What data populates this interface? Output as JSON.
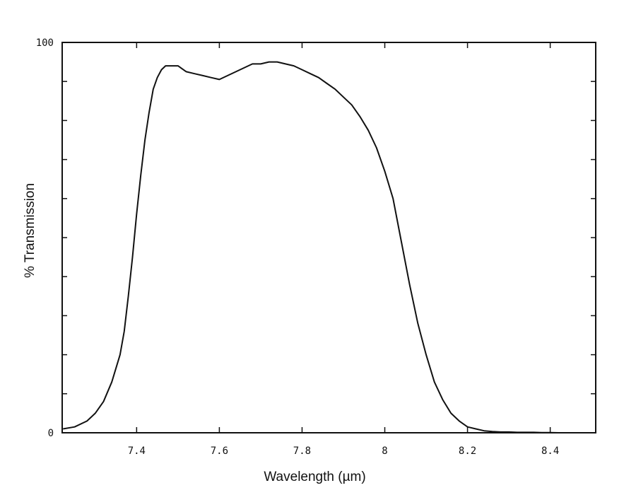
{
  "chart_data": {
    "type": "line",
    "title": "",
    "xlabel": "Wavelength (µm)",
    "ylabel": "% Transmission",
    "xlim": [
      7.22,
      8.51
    ],
    "ylim": [
      0,
      100
    ],
    "x_ticks": [
      7.4,
      7.6,
      7.8,
      8,
      8.2,
      8.4
    ],
    "x_tick_labels": [
      "7.4",
      "7.6",
      "7.8",
      "8",
      "8.2",
      "8.4"
    ],
    "y_ticks": [
      0,
      100
    ],
    "y_tick_labels": [
      "0",
      "100"
    ],
    "y_minor_ticks": [
      10,
      20,
      30,
      40,
      50,
      60,
      70,
      80,
      90
    ],
    "grid": false,
    "colors": {
      "line": "#111111",
      "axes": "#111111"
    },
    "series": [
      {
        "x": [
          7.222,
          7.25,
          7.28,
          7.3,
          7.32,
          7.34,
          7.36,
          7.37,
          7.38,
          7.39,
          7.4,
          7.41,
          7.42,
          7.43,
          7.44,
          7.45,
          7.46,
          7.47,
          7.48,
          7.5,
          7.52,
          7.54,
          7.56,
          7.58,
          7.6,
          7.62,
          7.64,
          7.66,
          7.68,
          7.7,
          7.72,
          7.74,
          7.76,
          7.78,
          7.8,
          7.82,
          7.84,
          7.86,
          7.88,
          7.9,
          7.92,
          7.94,
          7.96,
          7.98,
          8.0,
          8.02,
          8.04,
          8.06,
          8.08,
          8.1,
          8.12,
          8.14,
          8.16,
          8.18,
          8.2,
          8.22,
          8.24,
          8.26,
          8.28,
          8.3,
          8.32,
          8.34,
          8.36,
          8.38,
          8.4,
          8.42,
          8.44
        ],
        "y": [
          1.0,
          1.5,
          3.0,
          5.0,
          8.0,
          13.0,
          20.0,
          26.0,
          35.0,
          45.0,
          56.0,
          66.0,
          75.0,
          82.0,
          88.0,
          91.0,
          93.0,
          94.0,
          94.0,
          94.0,
          92.5,
          92.0,
          91.5,
          91.0,
          90.5,
          91.5,
          92.5,
          93.5,
          94.5,
          94.5,
          95.0,
          95.0,
          94.5,
          94.0,
          93.0,
          92.0,
          91.0,
          89.5,
          88.0,
          86.0,
          84.0,
          81.0,
          77.5,
          73.0,
          67.0,
          60.0,
          49.0,
          38.0,
          28.0,
          20.0,
          13.0,
          8.5,
          5.0,
          3.0,
          1.5,
          1.0,
          0.5,
          0.3,
          0.2,
          0.2,
          0.1,
          0.1,
          0.1,
          0.05,
          0.05,
          0.0,
          0.0
        ]
      }
    ]
  }
}
